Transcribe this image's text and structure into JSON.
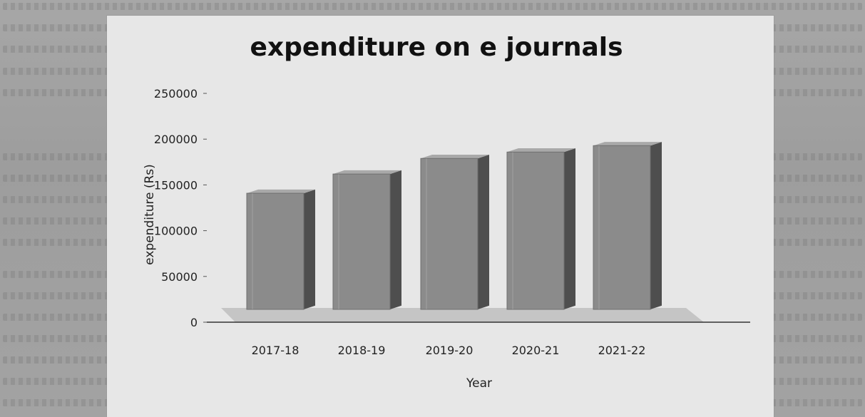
{
  "chart_data": {
    "type": "bar",
    "title": "expenditure on e journals",
    "xlabel": "Year",
    "ylabel": "expenditure (Rs)",
    "categories": [
      "2017-18",
      "2018-19",
      "2019-20",
      "2020-21",
      "2021-22"
    ],
    "values": [
      137000,
      158000,
      175000,
      182000,
      189000
    ],
    "ylim": [
      0,
      250000
    ],
    "yticks": [
      "0",
      "50000",
      "100000",
      "150000",
      "200000",
      "250000"
    ],
    "three_d": true,
    "grid": false,
    "legend": "none",
    "colors": {
      "bar_front": "#8b8b8b",
      "bar_side": "#4e4e4e",
      "bar_top": "#a9a9a9",
      "floor": "#b9b9b9"
    }
  }
}
